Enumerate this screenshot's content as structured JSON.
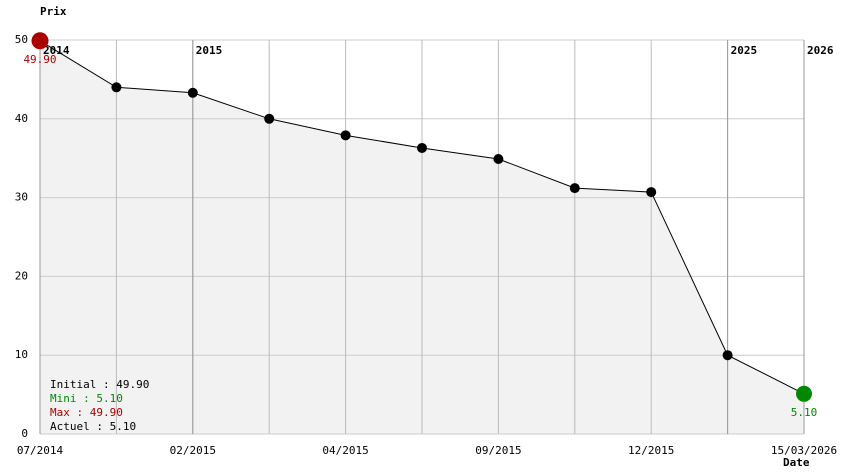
{
  "chart_data": {
    "type": "line",
    "y_axis_title": "Prix",
    "x_axis_title": "Date",
    "categories": [
      "07/2014",
      null,
      "02/2015",
      null,
      "04/2015",
      null,
      "09/2015",
      null,
      "12/2015",
      null,
      "15/03/2026"
    ],
    "year_labels": [
      "2014",
      null,
      "2015",
      null,
      null,
      null,
      null,
      null,
      null,
      "2025",
      "2026"
    ],
    "series": [
      {
        "color": "#000000",
        "values": [
          49.9,
          44.0,
          43.3,
          40.0,
          37.9,
          36.3,
          34.9,
          31.2,
          30.7,
          10.0,
          5.1
        ],
        "value_labels": [
          "49.90",
          null,
          null,
          null,
          null,
          null,
          null,
          null,
          null,
          null,
          "5.10"
        ]
      }
    ],
    "max_color": "#aa0000",
    "min_color": "#008800",
    "area_color": "#f2f2f2",
    "ylim": [
      0,
      50
    ],
    "yticks": [
      0,
      10,
      20,
      30,
      40,
      50
    ],
    "grid": true,
    "stats": [
      {
        "text": "Initial : 49.90",
        "color": "#000000"
      },
      {
        "text": "Mini : 5.10",
        "color": "#008800"
      },
      {
        "text": "Max : 49.90",
        "color": "#aa0000"
      },
      {
        "text": "Actuel : 5.10",
        "color": "#000000"
      }
    ]
  }
}
